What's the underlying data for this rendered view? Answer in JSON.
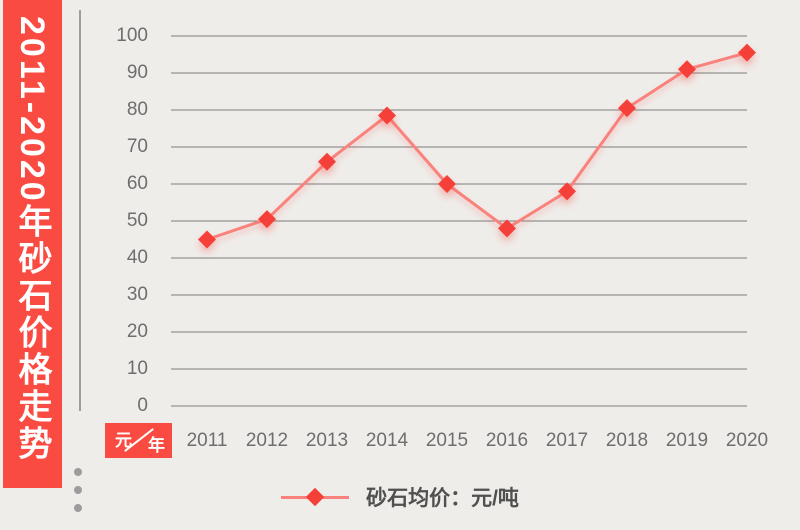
{
  "banner": {
    "title": "2011-2020年砂石价格走势"
  },
  "unit_badge": {
    "numerator": "元",
    "denominator": "年"
  },
  "legend": {
    "label": "砂石均价：元/吨"
  },
  "chart_data": {
    "type": "line",
    "title": "2011-2020年砂石价格走势",
    "categories": [
      "2011",
      "2012",
      "2013",
      "2014",
      "2015",
      "2016",
      "2017",
      "2018",
      "2019",
      "2020"
    ],
    "series": [
      {
        "name": "砂石均价",
        "unit": "元/吨",
        "marker": "diamond",
        "values": [
          45,
          50.5,
          66,
          78.5,
          60,
          48,
          58,
          80.5,
          91,
          95.5
        ]
      }
    ],
    "xlabel": "年",
    "ylabel": "元",
    "ylim": [
      0,
      100
    ],
    "yticks": [
      0,
      10,
      20,
      30,
      40,
      50,
      60,
      70,
      80,
      90,
      100
    ],
    "grid": "horizontal-only",
    "legend_position": "bottom-center",
    "colors": {
      "accent_red": "#F94B42",
      "marker_red": "#F5403A",
      "line_pink": "#F9827C",
      "grid_gray": "#7D7D7D",
      "tick_gray": "#6E6E6E",
      "legend_text": "#505050",
      "background": "#EFEDEA"
    }
  }
}
